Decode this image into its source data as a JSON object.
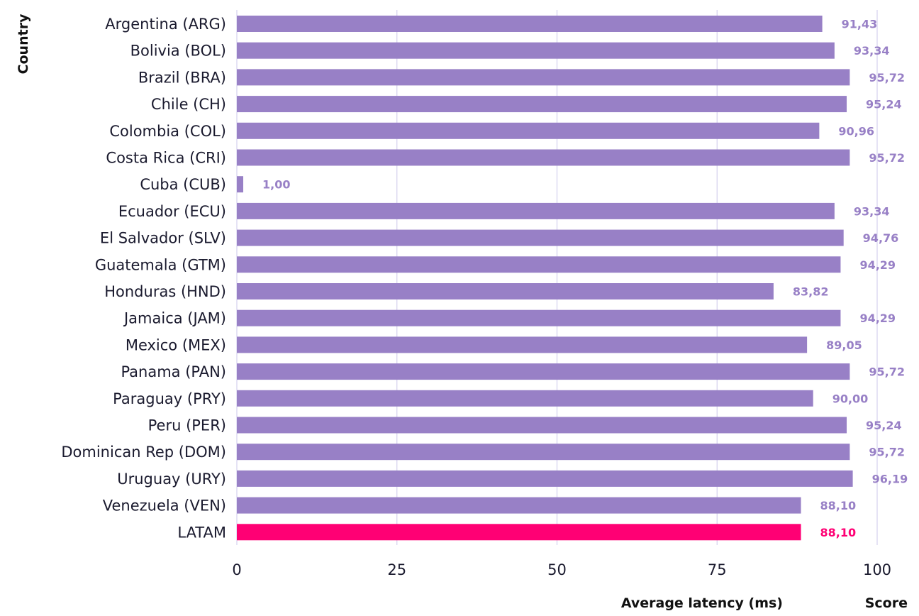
{
  "chart_data": {
    "type": "bar",
    "orientation": "horizontal",
    "categories": [
      "Argentina (ARG)",
      "Bolivia (BOL)",
      "Brazil (BRA)",
      "Chile (CH)",
      "Colombia (COL)",
      "Costa Rica (CRI)",
      "Cuba (CUB)",
      "Ecuador (ECU)",
      "El Salvador (SLV)",
      "Guatemala (GTM)",
      "Honduras (HND)",
      "Jamaica (JAM)",
      "Mexico (MEX)",
      "Panama (PAN)",
      "Paraguay (PRY)",
      "Peru (PER)",
      "Dominican Rep (DOM)",
      "Uruguay (URY)",
      "Venezuela (VEN)",
      "LATAM"
    ],
    "values": [
      91.43,
      93.34,
      95.72,
      95.24,
      90.96,
      95.72,
      1.0,
      93.34,
      94.76,
      94.29,
      83.82,
      94.29,
      89.05,
      95.72,
      90.0,
      95.24,
      95.72,
      96.19,
      88.1,
      88.1
    ],
    "value_labels": [
      "91,43",
      "93,34",
      "95,72",
      "95,24",
      "90,96",
      "95,72",
      "1,00",
      "93,34",
      "94,76",
      "94,29",
      "83,82",
      "94,29",
      "89,05",
      "95,72",
      "90,00",
      "95,24",
      "95,72",
      "96,19",
      "88,10",
      "88,10"
    ],
    "highlight": "LATAM",
    "ylabel": "Country",
    "xlabel": "Average latency (ms)",
    "xlabel_secondary": "Score",
    "xlim": [
      0,
      100
    ],
    "xticks": [
      0,
      25,
      50,
      75,
      100
    ],
    "xtick_labels": [
      "0",
      "25",
      "50",
      "75",
      "100"
    ],
    "grid": true,
    "colors": {
      "bar": "#9880c6",
      "bar_highlight": "#ff0074",
      "label": "#9880c6",
      "label_highlight": "#ff0074",
      "grid": "#d4d0ee"
    }
  }
}
